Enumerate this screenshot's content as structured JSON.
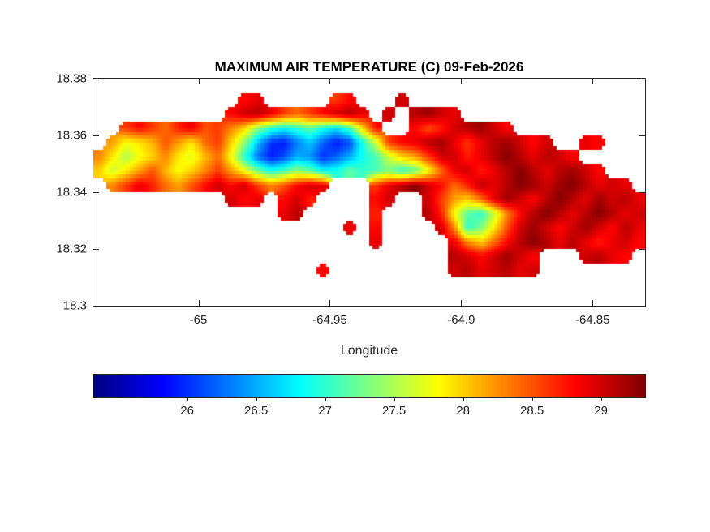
{
  "colors": {
    "background": "#ffffff",
    "axis": "#262626",
    "title_text": "#000000"
  },
  "chart_data": {
    "type": "heatmap",
    "title": "MAXIMUM AIR TEMPERATURE (C) 09-Feb-2026",
    "xlabel": "Longitude",
    "ylabel": "",
    "colormap": "jet",
    "xlim": [
      -65.04,
      -64.83
    ],
    "ylim": [
      18.3,
      18.38
    ],
    "color_range": [
      25.32,
      29.32
    ],
    "x_ticks": {
      "values": [
        -65,
        -64.95,
        -64.9,
        -64.85
      ],
      "labels": [
        "-65",
        "-64.95",
        "-64.9",
        "-64.85"
      ]
    },
    "y_ticks": {
      "values": [
        18.38,
        18.36,
        18.34,
        18.32,
        18.3
      ],
      "labels": [
        "18.38",
        "18.36",
        "18.34",
        "18.32",
        "18.3"
      ]
    },
    "colorbar": {
      "range": [
        25.32,
        29.32
      ],
      "ticks": [
        26,
        26.5,
        27,
        27.5,
        28,
        28.5,
        29
      ],
      "labels": [
        "26",
        "26.5",
        "27",
        "27.5",
        "28",
        "28.5",
        "29"
      ]
    },
    "grid": {
      "lon_start": -65.04,
      "lon_step": 0.005,
      "lat_start": 18.38,
      "lat_step": -0.005,
      "cols": 42,
      "rows": 16,
      "values": [
        [
          null,
          null,
          null,
          null,
          null,
          null,
          null,
          null,
          null,
          null,
          null,
          null,
          null,
          null,
          null,
          null,
          null,
          null,
          null,
          null,
          null,
          null,
          null,
          null,
          null,
          null,
          null,
          null,
          null,
          null,
          null,
          null,
          null,
          null,
          null,
          null,
          null,
          null,
          null,
          null,
          null,
          null
        ],
        [
          null,
          null,
          null,
          null,
          null,
          null,
          null,
          null,
          null,
          null,
          null,
          28.8,
          28.9,
          null,
          null,
          null,
          null,
          null,
          28.6,
          28.8,
          null,
          null,
          null,
          29.0,
          null,
          null,
          null,
          null,
          null,
          null,
          null,
          null,
          null,
          null,
          null,
          null,
          null,
          null,
          null,
          null,
          null,
          null
        ],
        [
          null,
          null,
          null,
          null,
          null,
          null,
          null,
          null,
          null,
          null,
          28.8,
          29.0,
          29.1,
          28.9,
          28.6,
          28.4,
          28.6,
          28.8,
          29.0,
          29.1,
          28.9,
          null,
          29.0,
          null,
          29.1,
          29.2,
          29.0,
          28.9,
          null,
          null,
          null,
          null,
          null,
          null,
          null,
          null,
          null,
          null,
          null,
          null,
          null,
          null
        ],
        [
          null,
          null,
          28.6,
          28.8,
          28.6,
          28.4,
          28.7,
          28.9,
          28.5,
          28.6,
          28.3,
          28.0,
          27.4,
          27.0,
          26.8,
          27.0,
          27.2,
          26.9,
          26.7,
          27.1,
          28.0,
          28.8,
          null,
          null,
          28.8,
          28.5,
          28.7,
          29.0,
          29.1,
          29.2,
          29.0,
          28.8,
          null,
          null,
          null,
          null,
          null,
          null,
          null,
          null,
          null,
          null
        ],
        [
          null,
          28.2,
          27.8,
          27.9,
          28.1,
          28.5,
          28.2,
          27.9,
          28.4,
          28.6,
          28.0,
          27.4,
          26.6,
          26.0,
          25.9,
          26.3,
          26.6,
          26.2,
          25.9,
          26.1,
          26.9,
          27.6,
          28.6,
          28.8,
          28.9,
          29.1,
          29.2,
          28.9,
          28.6,
          28.9,
          29.1,
          29.2,
          29.0,
          28.8,
          29.0,
          null,
          null,
          28.9,
          28.8,
          null,
          null,
          null
        ],
        [
          28.3,
          27.9,
          27.5,
          27.8,
          28.0,
          28.3,
          27.9,
          27.7,
          28.1,
          28.4,
          27.8,
          27.0,
          26.3,
          25.9,
          26.1,
          26.5,
          26.4,
          26.0,
          26.2,
          26.5,
          26.9,
          27.1,
          27.6,
          28.0,
          28.2,
          28.6,
          29.0,
          29.0,
          28.7,
          28.9,
          29.1,
          29.3,
          29.1,
          28.9,
          29.1,
          29.0,
          28.8,
          null,
          null,
          null,
          null,
          null
        ],
        [
          28.0,
          27.6,
          27.9,
          28.2,
          28.5,
          28.1,
          27.8,
          28.0,
          28.3,
          28.6,
          28.2,
          27.8,
          27.3,
          26.9,
          27.1,
          27.4,
          27.2,
          26.8,
          26.9,
          27.2,
          27.0,
          27.1,
          27.3,
          27.0,
          27.2,
          27.8,
          28.4,
          28.9,
          29.0,
          28.7,
          28.9,
          29.1,
          29.3,
          29.1,
          28.9,
          29.1,
          29.2,
          29.0,
          28.8,
          null,
          null,
          null
        ],
        [
          null,
          28.3,
          28.6,
          28.9,
          28.7,
          28.4,
          28.2,
          28.5,
          28.8,
          29.0,
          28.8,
          29.0,
          28.6,
          28.3,
          28.5,
          28.8,
          29.0,
          28.9,
          null,
          null,
          null,
          28.6,
          28.9,
          29.1,
          29.3,
          29.0,
          28.8,
          28.4,
          28.7,
          29.1,
          28.9,
          29.1,
          29.3,
          29.2,
          29.0,
          29.2,
          29.3,
          29.1,
          28.9,
          29.0,
          28.9,
          null
        ],
        [
          null,
          null,
          null,
          null,
          null,
          null,
          null,
          null,
          null,
          null,
          29.0,
          28.8,
          28.9,
          null,
          28.8,
          29.0,
          28.7,
          null,
          null,
          null,
          null,
          28.8,
          29.0,
          null,
          null,
          29.0,
          28.6,
          28.2,
          28.0,
          28.4,
          28.9,
          29.2,
          29.0,
          28.8,
          29.1,
          29.3,
          29.1,
          28.9,
          29.2,
          29.0,
          29.1,
          28.9
        ],
        [
          null,
          null,
          null,
          null,
          null,
          null,
          null,
          null,
          null,
          null,
          null,
          null,
          null,
          null,
          28.9,
          29.1,
          null,
          null,
          null,
          null,
          null,
          28.7,
          null,
          null,
          null,
          29.1,
          28.7,
          27.8,
          27.2,
          27.0,
          27.6,
          28.3,
          28.8,
          29.1,
          29.3,
          29.1,
          28.9,
          29.1,
          29.3,
          29.1,
          28.9,
          29.0
        ],
        [
          null,
          null,
          null,
          null,
          null,
          null,
          null,
          null,
          null,
          null,
          null,
          null,
          null,
          null,
          null,
          null,
          null,
          null,
          null,
          28.9,
          null,
          28.8,
          null,
          null,
          null,
          null,
          29.0,
          28.3,
          27.0,
          27.3,
          27.9,
          28.5,
          29.0,
          29.2,
          29.0,
          28.8,
          29.0,
          29.2,
          29.0,
          28.8,
          29.1,
          28.9
        ],
        [
          null,
          null,
          null,
          null,
          null,
          null,
          null,
          null,
          null,
          null,
          null,
          null,
          null,
          null,
          null,
          null,
          null,
          null,
          null,
          null,
          null,
          28.9,
          null,
          null,
          null,
          null,
          null,
          28.9,
          28.3,
          28.0,
          28.4,
          28.8,
          29.1,
          29.3,
          29.1,
          28.9,
          29.1,
          28.9,
          28.7,
          28.9,
          29.0,
          28.8
        ],
        [
          null,
          null,
          null,
          null,
          null,
          null,
          null,
          null,
          null,
          null,
          null,
          null,
          null,
          null,
          null,
          null,
          null,
          null,
          null,
          null,
          null,
          null,
          null,
          null,
          null,
          null,
          null,
          29.1,
          29.0,
          28.8,
          29.0,
          29.2,
          29.0,
          28.8,
          null,
          null,
          null,
          29.0,
          29.1,
          28.9,
          28.8,
          null
        ],
        [
          null,
          null,
          null,
          null,
          null,
          null,
          null,
          null,
          null,
          null,
          null,
          null,
          null,
          null,
          null,
          null,
          null,
          28.8,
          null,
          null,
          null,
          null,
          null,
          null,
          null,
          null,
          null,
          29.0,
          29.1,
          28.9,
          29.0,
          29.1,
          28.9,
          29.0,
          null,
          null,
          null,
          null,
          null,
          null,
          null,
          null
        ],
        [
          null,
          null,
          null,
          null,
          null,
          null,
          null,
          null,
          null,
          null,
          null,
          null,
          null,
          null,
          null,
          null,
          null,
          null,
          null,
          null,
          null,
          null,
          null,
          null,
          null,
          null,
          null,
          null,
          null,
          null,
          null,
          null,
          null,
          null,
          null,
          null,
          null,
          null,
          null,
          null,
          null,
          null
        ],
        [
          null,
          null,
          null,
          null,
          null,
          null,
          null,
          null,
          null,
          null,
          null,
          null,
          null,
          null,
          null,
          null,
          null,
          null,
          null,
          null,
          null,
          null,
          null,
          null,
          null,
          null,
          null,
          null,
          null,
          null,
          null,
          null,
          null,
          null,
          null,
          null,
          null,
          null,
          null,
          null,
          null,
          null
        ]
      ]
    }
  }
}
